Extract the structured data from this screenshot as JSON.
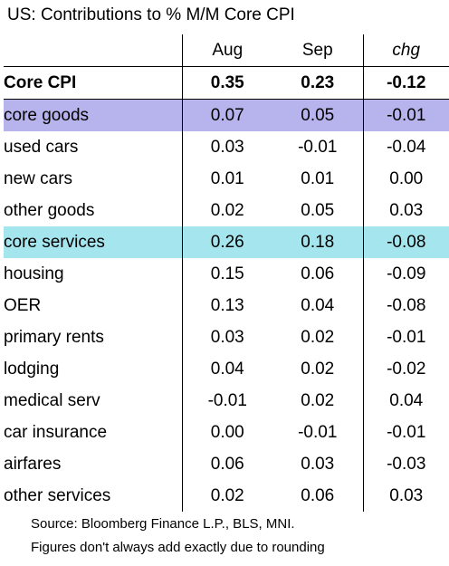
{
  "chart_data": {
    "type": "table",
    "title": "US: Contributions to % M/M Core CPI",
    "columns": [
      "",
      "Aug",
      "Sep",
      "chg"
    ],
    "rows": [
      {
        "label": "Core CPI",
        "aug": "0.35",
        "sep": "0.23",
        "chg": "-0.12",
        "level": 0,
        "style": "bold"
      },
      {
        "label": "core goods",
        "aug": "0.07",
        "sep": "0.05",
        "chg": "-0.01",
        "level": 0,
        "style": "goods",
        "highlight": "#b7b3ec"
      },
      {
        "label": "used cars",
        "aug": "0.03",
        "sep": "-0.01",
        "chg": "-0.04",
        "level": 1
      },
      {
        "label": "new cars",
        "aug": "0.01",
        "sep": "0.01",
        "chg": "0.00",
        "level": 1
      },
      {
        "label": "other goods",
        "aug": "0.02",
        "sep": "0.05",
        "chg": "0.03",
        "level": 1
      },
      {
        "label": "core services",
        "aug": "0.26",
        "sep": "0.18",
        "chg": "-0.08",
        "level": 0,
        "style": "services",
        "highlight": "#a5e6ee"
      },
      {
        "label": "housing",
        "aug": "0.15",
        "sep": "0.06",
        "chg": "-0.09",
        "level": 1
      },
      {
        "label": "OER",
        "aug": "0.13",
        "sep": "0.04",
        "chg": "-0.08",
        "level": 2
      },
      {
        "label": "primary rents",
        "aug": "0.03",
        "sep": "0.02",
        "chg": "-0.01",
        "level": 2
      },
      {
        "label": "lodging",
        "aug": "0.04",
        "sep": "0.02",
        "chg": "-0.02",
        "level": 1
      },
      {
        "label": "medical serv",
        "aug": "-0.01",
        "sep": "0.02",
        "chg": "0.04",
        "level": 1
      },
      {
        "label": "car insurance",
        "aug": "0.00",
        "sep": "-0.01",
        "chg": "-0.01",
        "level": 1
      },
      {
        "label": "airfares",
        "aug": "0.06",
        "sep": "0.03",
        "chg": "-0.03",
        "level": 1
      },
      {
        "label": "other services",
        "aug": "0.02",
        "sep": "0.06",
        "chg": "0.03",
        "level": 1
      }
    ],
    "source": "Source: Bloomberg Finance L.P., BLS, MNI.",
    "note": "Figures don't always add exactly due to rounding"
  }
}
